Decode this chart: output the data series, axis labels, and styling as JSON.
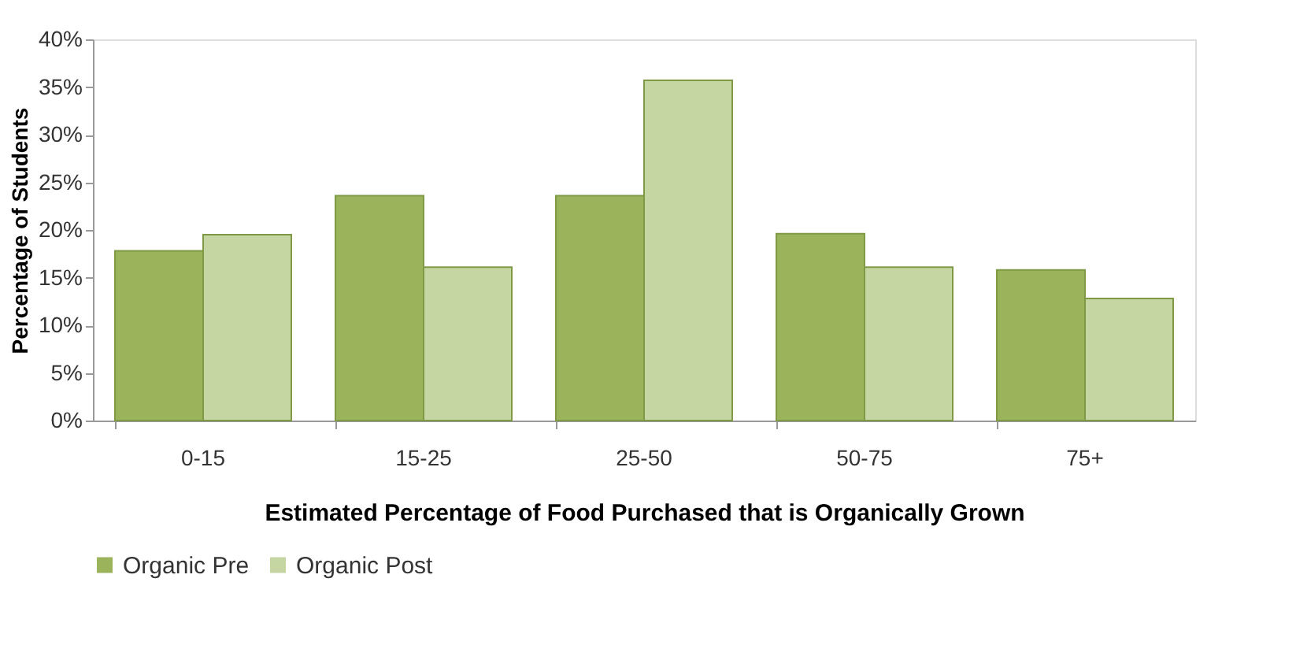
{
  "chart_data": {
    "type": "bar",
    "xlabel": "Estimated Percentage of Food Purchased that is Organically Grown",
    "ylabel": "Percentage of Students",
    "categories": [
      "0-15",
      "15-25",
      "25-50",
      "50-75",
      "75+"
    ],
    "series": [
      {
        "name": "Organic Pre",
        "color": "#9bb35a",
        "values": [
          17.8,
          23.6,
          23.6,
          19.6,
          15.8
        ]
      },
      {
        "name": "Organic Post",
        "color": "#c5d6a2",
        "values": [
          19.5,
          16.1,
          35.7,
          16.1,
          12.8
        ]
      }
    ],
    "ylim": [
      0,
      40
    ],
    "yticks": [
      {
        "value": 0,
        "label": "0%"
      },
      {
        "value": 5,
        "label": "5%"
      },
      {
        "value": 10,
        "label": "10%"
      },
      {
        "value": 15,
        "label": "15%"
      },
      {
        "value": 20,
        "label": "20%"
      },
      {
        "value": 25,
        "label": "25%"
      },
      {
        "value": 30,
        "label": "30%"
      },
      {
        "value": 35,
        "label": "35%"
      },
      {
        "value": 40,
        "label": "40%"
      }
    ],
    "grid": false,
    "legend": "bottom"
  }
}
